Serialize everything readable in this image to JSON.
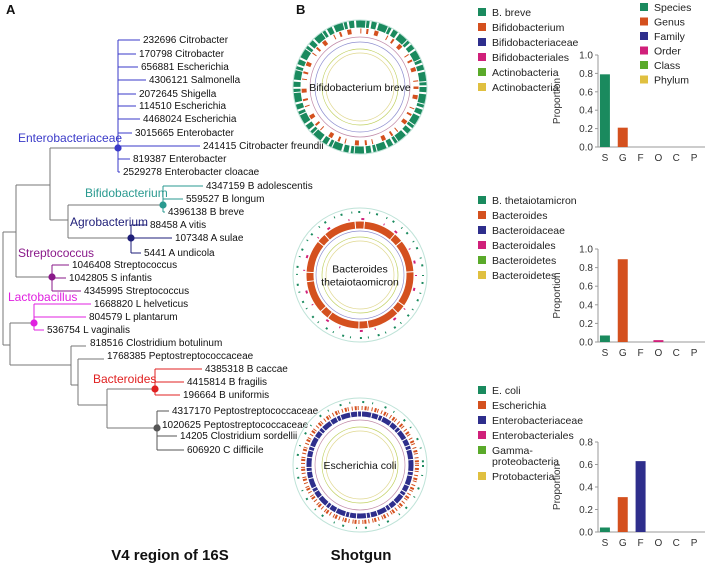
{
  "panel_a": {
    "letter": "A",
    "footer": "V4 region of 16S",
    "clades": [
      {
        "label": "Enterobacteriaceae",
        "color": "#3a3ac8"
      },
      {
        "label": "Bifidobacterium",
        "color": "#2a9a90"
      },
      {
        "label": "Agrobacterium",
        "color": "#1e1e78"
      },
      {
        "label": "Streptococcus",
        "color": "#8a1a8a"
      },
      {
        "label": "Lactobacillus",
        "color": "#e020e0"
      },
      {
        "label": "Bacteroides",
        "color": "#e02020"
      }
    ],
    "leaves": [
      {
        "label": "232696 Citrobacter",
        "highlight": false
      },
      {
        "label": "170798 Citrobacter",
        "highlight": false
      },
      {
        "label": "656881 Escherichia",
        "highlight": false
      },
      {
        "label": "4306121 Salmonella",
        "highlight": false
      },
      {
        "label": "2072645 Shigella",
        "highlight": false
      },
      {
        "label": "114510 Escherichia",
        "highlight": false
      },
      {
        "label": "4468024 Escherichia",
        "highlight": false
      },
      {
        "label": "3015665 Enterobacter",
        "highlight": false
      },
      {
        "label": "241415 Citrobacter freundii",
        "highlight": true
      },
      {
        "label": "819387 Enterobacter",
        "highlight": false
      },
      {
        "label": "2529278 Enterobacter cloacae",
        "highlight": true
      },
      {
        "label": "4347159 B adolescentis",
        "highlight": false
      },
      {
        "label": "559527 B longum",
        "highlight": false
      },
      {
        "label": "4396138 B breve",
        "highlight": false
      },
      {
        "label": "88458 A vitis",
        "highlight": false
      },
      {
        "label": "107348 A sulae",
        "highlight": false
      },
      {
        "label": "5441 A undicola",
        "highlight": false
      },
      {
        "label": "1046408 Streptococcus",
        "highlight": false
      },
      {
        "label": "1042805 S infantis",
        "highlight": false
      },
      {
        "label": "4345995 Streptococcus",
        "highlight": false
      },
      {
        "label": "1668820 L helveticus",
        "highlight": false
      },
      {
        "label": "804579 L plantarum",
        "highlight": false
      },
      {
        "label": "536754 L vaginalis",
        "highlight": false
      },
      {
        "label": "818516 Clostridium botulinum",
        "highlight": true
      },
      {
        "label": "1768385 Peptostreptococcaceae",
        "highlight": false
      },
      {
        "label": "4385318 B caccae",
        "highlight": false
      },
      {
        "label": "4415814 B fragilis",
        "highlight": false
      },
      {
        "label": "196664 B uniformis",
        "highlight": false
      },
      {
        "label": "4317170 Peptostreptococcaceae",
        "highlight": false
      },
      {
        "label": "1020625 Peptostreptococcaceae",
        "highlight": false
      },
      {
        "label": "14205 Clostridium sordellii",
        "highlight": false
      },
      {
        "label": "606920 C difficile",
        "highlight": true
      }
    ],
    "highlight_color": "#3aaa2a"
  },
  "panel_b": {
    "letter": "B",
    "footer": "Shotgun",
    "rank_colors": [
      "#1a8a5e",
      "#d4501e",
      "#2e2e8c",
      "#d0207a",
      "#5aaa2a",
      "#e0c040"
    ],
    "rank_legend": [
      "Species",
      "Genus",
      "Family",
      "Order",
      "Class",
      "Phylum"
    ],
    "samples": [
      {
        "center_label": [
          "Bifidobacterium breve"
        ],
        "legend": [
          "B. breve",
          "Bifidobacterium",
          "Bifidobacteriaceae",
          "Bifidobacteriales",
          "Actinobacteria",
          "Actinobacteria"
        ]
      },
      {
        "center_label": [
          "Bacteroides",
          "thetaiotaomicron"
        ],
        "legend": [
          "B. thetaiotamicron",
          "Bacteroides",
          "Bacteroidaceae",
          "Bacteroidales",
          "Bacteroidetes",
          "Bacteroidetes"
        ]
      },
      {
        "center_label": [
          "Escherichia coli"
        ],
        "legend": [
          "E. coli",
          "Escherichia",
          "Enterobacteriaceae",
          "Enterobacteriales",
          "Gamma-",
          "Protobacteria"
        ],
        "legend_extra": "proteobacteria"
      }
    ]
  },
  "chart_data": [
    {
      "type": "bar",
      "categories": [
        "S",
        "G",
        "F",
        "O",
        "C",
        "P"
      ],
      "values": [
        0.79,
        0.21,
        0,
        0,
        0,
        0
      ],
      "ylabel": "Proportion",
      "ylim": [
        0,
        1.0
      ],
      "yticks": [
        "0.0",
        "0.2",
        "0.4",
        "0.6",
        "0.8",
        "1.0"
      ]
    },
    {
      "type": "bar",
      "categories": [
        "S",
        "G",
        "F",
        "O",
        "C",
        "P"
      ],
      "values": [
        0.07,
        0.89,
        0,
        0.02,
        0,
        0
      ],
      "ylabel": "Proportion",
      "ylim": [
        0,
        1.0
      ],
      "yticks": [
        "0.0",
        "0.2",
        "0.4",
        "0.6",
        "0.8",
        "1.0"
      ]
    },
    {
      "type": "bar",
      "categories": [
        "S",
        "G",
        "F",
        "O",
        "C",
        "P"
      ],
      "values": [
        0.04,
        0.31,
        0.63,
        0,
        0,
        0
      ],
      "ylabel": "Proportion",
      "ylim": [
        0,
        0.8
      ],
      "yticks": [
        "0.0",
        "0.2",
        "0.4",
        "0.6",
        "0.8"
      ]
    }
  ]
}
